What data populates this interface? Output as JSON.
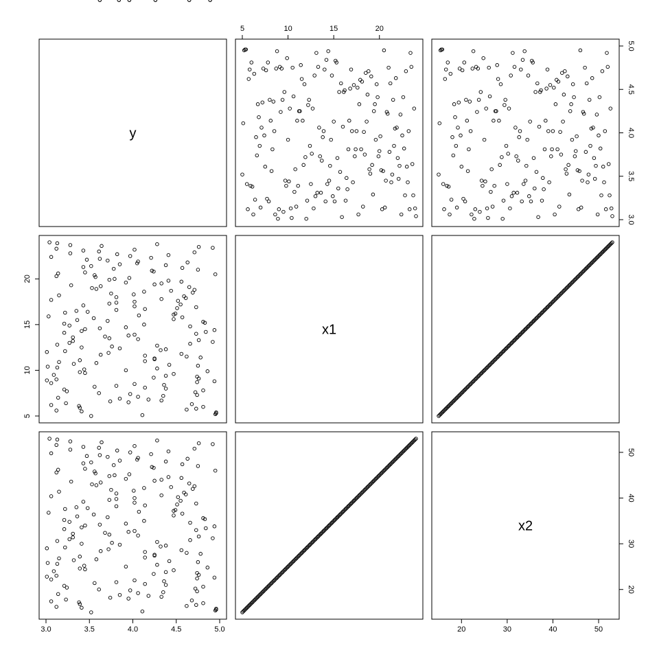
{
  "chart_data": {
    "type": "scatter",
    "kind": "scatterplot-matrix",
    "variables": [
      "y",
      "x1",
      "x2"
    ],
    "axes": {
      "y": {
        "range": [
          3.0,
          5.0
        ],
        "ticks": [
          "3.0",
          "3.5",
          "4.0",
          "4.5",
          "5.0"
        ]
      },
      "x1": {
        "range": [
          5,
          24
        ],
        "ticks": [
          "5",
          "10",
          "15",
          "20"
        ]
      },
      "x2": {
        "range": [
          15,
          53
        ],
        "ticks": [
          "20",
          "30",
          "40",
          "50"
        ]
      }
    },
    "axis_placement": {
      "bottom": [
        "y",
        null,
        "x2"
      ],
      "top": [
        null,
        "x1",
        null
      ],
      "left": [
        null,
        "x1",
        null
      ],
      "right": [
        "y",
        null,
        "x2"
      ]
    },
    "relationship": {
      "x2_equals": "2*x1 + 5"
    },
    "observations": {
      "x1": [
        5.0,
        5.1,
        5.2,
        5.3,
        5.4,
        5.5,
        5.6,
        5.7,
        5.8,
        5.9,
        6.0,
        6.1,
        6.2,
        6.3,
        6.4,
        6.5,
        6.6,
        6.7,
        6.8,
        6.9,
        7.0,
        7.1,
        7.2,
        7.3,
        7.4,
        7.5,
        7.6,
        7.7,
        7.8,
        7.9,
        8.0,
        8.1,
        8.2,
        8.3,
        8.4,
        8.5,
        8.6,
        8.7,
        8.8,
        8.9,
        9.0,
        9.1,
        9.2,
        9.3,
        9.4,
        9.5,
        9.6,
        9.7,
        9.8,
        9.9,
        10.0,
        10.1,
        10.2,
        10.3,
        10.4,
        10.5,
        10.6,
        10.7,
        10.8,
        10.9,
        11.0,
        11.1,
        11.2,
        11.3,
        11.4,
        11.5,
        11.6,
        11.7,
        11.8,
        11.9,
        12.0,
        12.1,
        12.2,
        12.3,
        12.4,
        12.5,
        12.6,
        12.7,
        12.8,
        12.9,
        13.0,
        13.1,
        13.2,
        13.3,
        13.4,
        13.5,
        13.6,
        13.7,
        13.8,
        13.9,
        14.0,
        14.1,
        14.2,
        14.3,
        14.4,
        14.5,
        14.6,
        14.7,
        14.8,
        14.9,
        15.0,
        15.1,
        15.2,
        15.3,
        15.4,
        15.5,
        15.6,
        15.7,
        15.8,
        15.9,
        16.0,
        16.1,
        16.2,
        16.3,
        16.4,
        16.5,
        16.6,
        16.7,
        16.8,
        16.9,
        17.0,
        17.1,
        17.2,
        17.3,
        17.4,
        17.5,
        17.6,
        17.7,
        17.8,
        17.9,
        18.0,
        18.1,
        18.2,
        18.3,
        18.4,
        18.5,
        18.6,
        18.7,
        18.8,
        18.9,
        19.0,
        19.1,
        19.2,
        19.3,
        19.4,
        19.5,
        19.6,
        19.7,
        19.8,
        19.9,
        20.0,
        20.1,
        20.2,
        20.3,
        20.4,
        20.5,
        20.6,
        20.7,
        20.8,
        20.9,
        21.0,
        21.1,
        21.2,
        21.3,
        21.4,
        21.5,
        21.6,
        21.7,
        21.8,
        21.9,
        22.0,
        22.1,
        22.2,
        22.3,
        22.4,
        22.5,
        22.6,
        22.7,
        22.8,
        22.9,
        23.0,
        23.1,
        23.2,
        23.3,
        23.4,
        23.5,
        23.6,
        23.7,
        23.8,
        23.9,
        24.0
      ],
      "y": [
        3.52,
        4.11,
        4.95,
        4.96,
        4.96,
        3.41,
        3.12,
        4.62,
        4.73,
        3.39,
        4.81,
        3.38,
        3.06,
        4.68,
        3.23,
        3.95,
        3.74,
        4.33,
        4.18,
        3.85,
        3.14,
        4.06,
        4.35,
        4.74,
        3.97,
        3.61,
        4.72,
        3.24,
        4.81,
        3.21,
        4.38,
        4.14,
        3.56,
        3.81,
        4.36,
        4.02,
        3.06,
        4.74,
        4.94,
        3.01,
        3.12,
        4.76,
        4.24,
        4.74,
        4.38,
        3.09,
        4.47,
        3.45,
        3.39,
        4.86,
        3.92,
        3.44,
        4.28,
        3.13,
        3.02,
        4.75,
        4.42,
        3.32,
        3.58,
        3.15,
        4.14,
        3.39,
        4.25,
        4.25,
        4.78,
        4.62,
        4.14,
        3.63,
        4.56,
        3.72,
        3.01,
        3.22,
        4.32,
        4.38,
        3.85,
        3.41,
        3.76,
        4.28,
        3.13,
        4.66,
        3.27,
        4.92,
        3.31,
        4.76,
        4.06,
        3.73,
        3.31,
        3.68,
        3.95,
        4.02,
        4.73,
        3.21,
        4.84,
        3.41,
        4.94,
        3.45,
        3.62,
        3.92,
        4.66,
        3.27,
        4.13,
        3.21,
        4.83,
        4.81,
        3.71,
        3.36,
        4.47,
        3.55,
        4.57,
        3.03,
        4.07,
        4.47,
        4.49,
        3.22,
        3.48,
        3.35,
        3.81,
        4.14,
        4.51,
        4.73,
        4.02,
        3.43,
        4.55,
        3.73,
        3.81,
        4.02,
        4.52,
        3.06,
        4.33,
        4.61,
        3.81,
        4.59,
        3.15,
        4.01,
        3.75,
        4.69,
        4.13,
        4.44,
        4.71,
        3.58,
        3.53,
        4.65,
        3.63,
        3.29,
        4.25,
        4.33,
        3.92,
        4.56,
        4.41,
        3.73,
        3.79,
        3.96,
        3.57,
        3.12,
        3.56,
        4.95,
        3.14,
        3.45,
        4.24,
        4.22,
        4.75,
        3.78,
        4.57,
        3.43,
        3.52,
        4.38,
        3.85,
        4.05,
        4.63,
        4.06,
        3.71,
        3.47,
        3.62,
        4.21,
        3.06,
        3.97,
        4.41,
        3.82,
        3.28,
        4.71,
        3.61,
        3.43,
        4.02,
        3.12,
        4.92,
        4.76,
        3.64,
        3.28,
        4.28,
        3.13,
        3.04,
        4.26,
        3.96,
        3.84,
        3.62,
        4.65,
        4.89
      ]
    }
  }
}
